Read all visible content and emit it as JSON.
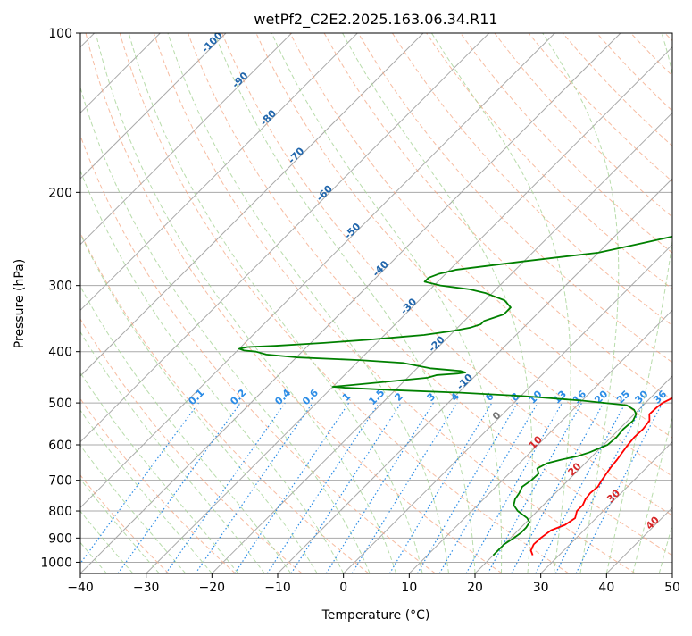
{
  "chart_data": {
    "type": "line",
    "subtype": "skew-T log-P diagram",
    "title": "wetPf2_C2E2.2025.163.06.34.R11",
    "xlabel": "Temperature (°C)",
    "ylabel": "Pressure (hPa)",
    "xlim": [
      -40,
      50
    ],
    "ylim": [
      1050,
      100
    ],
    "y_scale": "log",
    "grid": true,
    "x_ticks": [
      -40,
      -30,
      -20,
      -10,
      0,
      10,
      20,
      30,
      40,
      50
    ],
    "y_ticks": [
      100,
      200,
      300,
      400,
      500,
      600,
      700,
      800,
      900,
      1000
    ],
    "background_lines": {
      "isotherms_color": "#a9a9a9",
      "dry_adiabats_color": "#f4a582",
      "moist_adiabats_color": "#a6d396",
      "mixing_ratio_color": "#2b8ce6",
      "isobar_color": "#aaaaaa",
      "mixing_ratio_labels": [
        "0.1",
        "0.2",
        "0.4",
        "0.6",
        "1",
        "1.5",
        "2",
        "3",
        "4",
        "6",
        "8",
        "10",
        "13",
        "16",
        "20",
        "25",
        "30",
        "36"
      ],
      "mixing_ratio_values": [
        0.1,
        0.2,
        0.4,
        0.6,
        1,
        1.5,
        2,
        3,
        4,
        6,
        8,
        10,
        13,
        16,
        20,
        25,
        30,
        36
      ],
      "cold_isotherm_labels": [
        "-100",
        "-90",
        "-80",
        "-70",
        "-60",
        "-50",
        "-40",
        "-30",
        "-20",
        "-10"
      ],
      "cold_isotherm_values": [
        -100,
        -90,
        -80,
        -70,
        -60,
        -50,
        -40,
        -30,
        -20,
        -10
      ],
      "warm_isotherm_labels": [
        "0",
        "10",
        "20",
        "30",
        "40"
      ],
      "warm_isotherm_values": [
        0,
        10,
        20,
        30,
        40
      ],
      "cold_label_color": "#2166ac",
      "warm_label_color": "#d62728",
      "zero_label_color": "#777777"
    },
    "series": [
      {
        "color": "#ff0000",
        "p": [
          970,
          950,
          925,
          900,
          870,
          850,
          825,
          800,
          780,
          760,
          740,
          720,
          700,
          680,
          660,
          640,
          620,
          600,
          580,
          560,
          540,
          525,
          510,
          500,
          490,
          480,
          470,
          460,
          450,
          440,
          430,
          420,
          410,
          400,
          380,
          360,
          340,
          320,
          300,
          280,
          260,
          240,
          220,
          200,
          180,
          160,
          140,
          130,
          120,
          110,
          100
        ],
        "t": [
          26,
          25,
          24.5,
          24.6,
          25,
          26.3,
          26.8,
          26,
          26,
          25.5,
          25.3,
          25.5,
          25.1,
          24.8,
          24.5,
          24.3,
          24,
          23.7,
          23.5,
          23.6,
          23.3,
          22.3,
          22.4,
          22.6,
          23.3,
          23.9,
          23.1,
          22.8,
          23.2,
          23,
          22.4,
          22.2,
          21.6,
          21.4,
          20.6,
          20.2,
          19.8,
          19.3,
          18.8,
          18.7,
          18.5,
          18.1,
          17.9,
          17.3,
          15.3,
          13.8,
          12.8,
          12.8,
          12.8,
          13.1,
          13.6
        ]
      },
      {
        "color": "#008000",
        "p": [
          970,
          950,
          925,
          900,
          880,
          860,
          840,
          825,
          800,
          780,
          760,
          740,
          720,
          700,
          680,
          665,
          650,
          640,
          630,
          620,
          600,
          580,
          560,
          540,
          525,
          515,
          505,
          495,
          485,
          478,
          473,
          468,
          466,
          462,
          455,
          448,
          443,
          440,
          438,
          435,
          430,
          420,
          415,
          410,
          405,
          400,
          398,
          395,
          392,
          390,
          385,
          380,
          375,
          372,
          365,
          360,
          355,
          350,
          345,
          340,
          330,
          320,
          315,
          310,
          305,
          300,
          295,
          290,
          285,
          280,
          270,
          260,
          250,
          240,
          230,
          220,
          215,
          210,
          200,
          190,
          180,
          175,
          170,
          160,
          150,
          140,
          130,
          120,
          110,
          105,
          100
        ],
        "td": [
          20,
          20,
          20,
          20.5,
          20.8,
          20.8,
          20.5,
          19.5,
          17,
          15.5,
          14.8,
          14.5,
          14,
          14.4,
          14.5,
          13.5,
          14.2,
          15.8,
          17.8,
          19,
          20.6,
          20.8,
          20.6,
          20.8,
          20.3,
          19.3,
          17.5,
          10,
          0,
          -10,
          -20,
          -28,
          -30,
          -27,
          -22,
          -17,
          -16,
          -13,
          -12,
          -13,
          -18,
          -23,
          -30,
          -40,
          -45,
          -47,
          -49,
          -50,
          -49,
          -45,
          -38,
          -32,
          -27,
          -24,
          -20,
          -18,
          -17,
          -17,
          -16,
          -15,
          -15,
          -17,
          -19,
          -21,
          -24,
          -29,
          -32,
          -32,
          -31,
          -29,
          -20,
          -10,
          -5,
          0,
          3,
          5,
          5.8,
          5.9,
          4.8,
          2.6,
          0.8,
          -1,
          -1.4,
          -1,
          0.1,
          -0.3,
          -0.1,
          -1,
          0.3,
          2.2,
          3.7
        ]
      }
    ]
  }
}
